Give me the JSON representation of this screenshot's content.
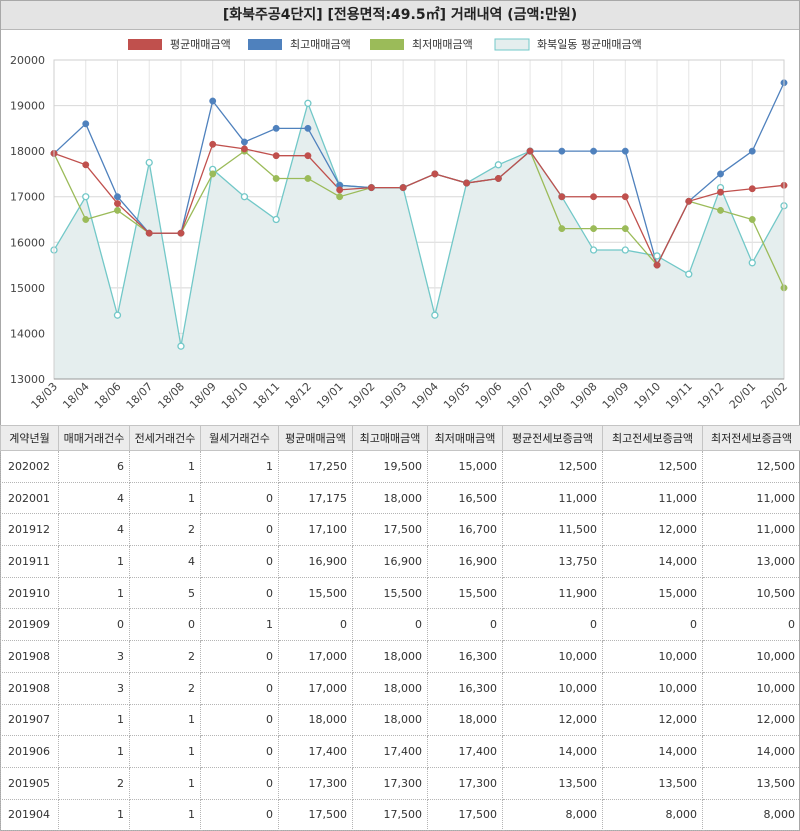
{
  "title": "[화북주공4단지] [전용면적:49.5㎡] 거래내역 (금액:만원)",
  "colors": {
    "avg": "#c0504d",
    "max": "#4f81bd",
    "min": "#9bbb59",
    "region": "#72c8c8",
    "region_fill": "#e5eeee"
  },
  "chart_data": {
    "type": "line",
    "categories": [
      "18/03",
      "18/04",
      "18/06",
      "18/07",
      "18/08",
      "18/09",
      "18/10",
      "18/11",
      "18/12",
      "19/01",
      "19/02",
      "19/03",
      "19/04",
      "19/05",
      "19/06",
      "19/07",
      "19/08",
      "19/08",
      "19/09",
      "19/10",
      "19/11",
      "19/12",
      "20/01",
      "20/02"
    ],
    "ylim": [
      13000,
      20000
    ],
    "yticks": [
      13000,
      14000,
      15000,
      16000,
      17000,
      18000,
      19000,
      20000
    ],
    "legend_position": "top",
    "grid": true,
    "series": [
      {
        "name": "평균매매금액",
        "key": "avg",
        "values": [
          17950,
          17700,
          16850,
          16200,
          16200,
          18150,
          18050,
          17900,
          17900,
          17150,
          17200,
          17200,
          17500,
          17300,
          17400,
          18000,
          17000,
          17000,
          17000,
          15500,
          16900,
          17100,
          17175,
          17250
        ]
      },
      {
        "name": "최고매매금액",
        "key": "max",
        "values": [
          17950,
          18600,
          17000,
          16200,
          16200,
          19100,
          18200,
          18500,
          18500,
          17250,
          17200,
          17200,
          17500,
          17300,
          17400,
          18000,
          18000,
          18000,
          18000,
          15500,
          16900,
          17500,
          18000,
          19500
        ]
      },
      {
        "name": "최저매매금액",
        "key": "min",
        "values": [
          17950,
          16500,
          16700,
          16200,
          16200,
          17500,
          18000,
          17400,
          17400,
          17000,
          17200,
          17200,
          17500,
          17300,
          17400,
          18000,
          16300,
          16300,
          16300,
          15500,
          16900,
          16700,
          16500,
          15000
        ]
      },
      {
        "name": "화북일동 평균매매금액",
        "key": "region",
        "area": true,
        "values": [
          15830,
          17000,
          14400,
          17750,
          13720,
          17600,
          17000,
          16500,
          19050,
          17250,
          17200,
          17200,
          14400,
          17300,
          17700,
          18000,
          17000,
          15830,
          15830,
          15700,
          15300,
          17200,
          15550,
          16800
        ]
      }
    ]
  },
  "table": {
    "headers": [
      "계약년월",
      "매매거래건수",
      "전세거래건수",
      "월세거래건수",
      "평균매매금액",
      "최고매매금액",
      "최저매매금액",
      "평균전세보증금액",
      "최고전세보증금액",
      "최저전세보증금액"
    ],
    "rows": [
      [
        "202002",
        "6",
        "1",
        "1",
        "17,250",
        "19,500",
        "15,000",
        "12,500",
        "12,500",
        "12,500"
      ],
      [
        "202001",
        "4",
        "1",
        "0",
        "17,175",
        "18,000",
        "16,500",
        "11,000",
        "11,000",
        "11,000"
      ],
      [
        "201912",
        "4",
        "2",
        "0",
        "17,100",
        "17,500",
        "16,700",
        "11,500",
        "12,000",
        "11,000"
      ],
      [
        "201911",
        "1",
        "4",
        "0",
        "16,900",
        "16,900",
        "16,900",
        "13,750",
        "14,000",
        "13,000"
      ],
      [
        "201910",
        "1",
        "5",
        "0",
        "15,500",
        "15,500",
        "15,500",
        "11,900",
        "15,000",
        "10,500"
      ],
      [
        "201909",
        "0",
        "0",
        "1",
        "0",
        "0",
        "0",
        "0",
        "0",
        "0"
      ],
      [
        "201908",
        "3",
        "2",
        "0",
        "17,000",
        "18,000",
        "16,300",
        "10,000",
        "10,000",
        "10,000"
      ],
      [
        "201908",
        "3",
        "2",
        "0",
        "17,000",
        "18,000",
        "16,300",
        "10,000",
        "10,000",
        "10,000"
      ],
      [
        "201907",
        "1",
        "1",
        "0",
        "18,000",
        "18,000",
        "18,000",
        "12,000",
        "12,000",
        "12,000"
      ],
      [
        "201906",
        "1",
        "1",
        "0",
        "17,400",
        "17,400",
        "17,400",
        "14,000",
        "14,000",
        "14,000"
      ],
      [
        "201905",
        "2",
        "1",
        "0",
        "17,300",
        "17,300",
        "17,300",
        "13,500",
        "13,500",
        "13,500"
      ],
      [
        "201904",
        "1",
        "1",
        "0",
        "17,500",
        "17,500",
        "17,500",
        "8,000",
        "8,000",
        "8,000"
      ]
    ]
  }
}
